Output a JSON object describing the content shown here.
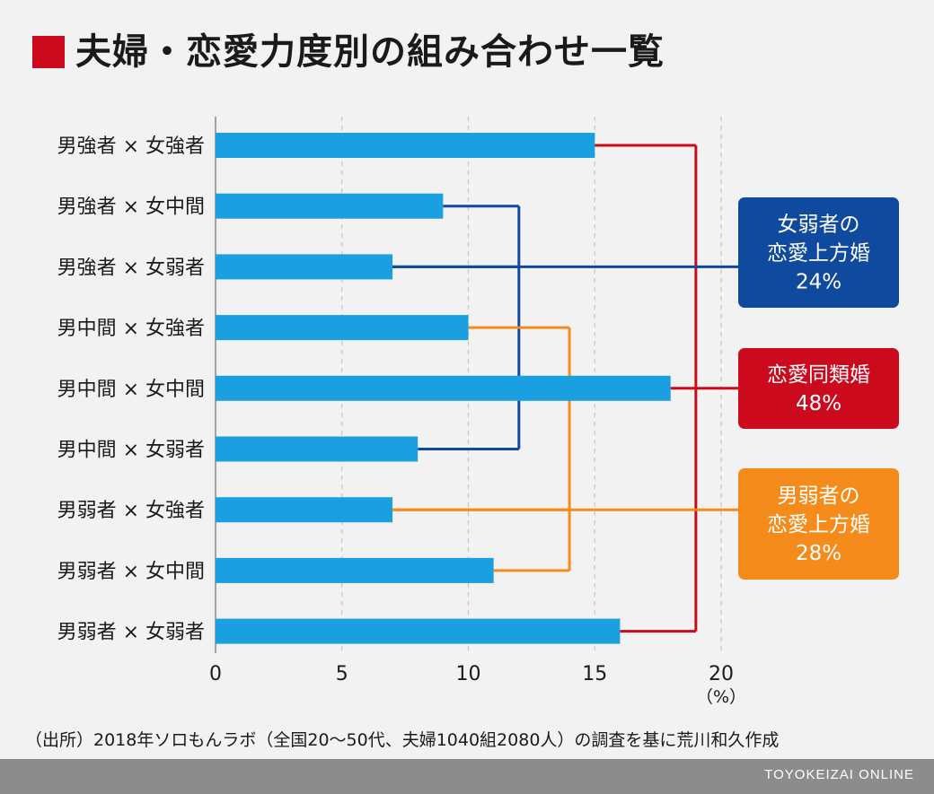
{
  "header": {
    "title": "夫婦・恋愛力度別の組み合わせ一覧"
  },
  "colors": {
    "title_marker": "#cc0a1e",
    "bar": "#1aa0e0",
    "grid": "#c8c8c8",
    "axis": "#888888",
    "red": "#cc0a1e",
    "blue": "#0f4a9e",
    "orange": "#f58b1a"
  },
  "chart_data": {
    "type": "bar",
    "orientation": "horizontal",
    "categories": [
      "男強者 × 女強者",
      "男強者 × 女中間",
      "男強者 × 女弱者",
      "男中間 × 女強者",
      "男中間 × 女中間",
      "男中間 × 女弱者",
      "男弱者 × 女強者",
      "男弱者 × 女中間",
      "男弱者 × 女弱者"
    ],
    "values": [
      15,
      9,
      7,
      10,
      18,
      8,
      7,
      11,
      16
    ],
    "xlim": [
      0,
      20
    ],
    "x_ticks": [
      0,
      5,
      10,
      15,
      20
    ],
    "x_tick_labels": [
      "0",
      "5",
      "10",
      "15",
      "20"
    ],
    "unit_label": "（%）",
    "grid": true,
    "groups": [
      {
        "id": "red",
        "label_lines": [
          "恋愛同類婚",
          "48%"
        ],
        "members": [
          0,
          4,
          8
        ],
        "bracket_x": 19
      },
      {
        "id": "blue",
        "label_lines": [
          "女弱者の",
          "恋愛上方婚",
          "24%"
        ],
        "members": [
          1,
          2,
          5
        ],
        "bracket_x": 12
      },
      {
        "id": "orange",
        "label_lines": [
          "男弱者の",
          "恋愛上方婚",
          "28%"
        ],
        "members": [
          3,
          6,
          7
        ],
        "bracket_x": 14
      }
    ]
  },
  "source_note": "（出所）2018年ソロもんラボ（全国20〜50代、夫婦1040組2080人）の調査を基に荒川和久作成",
  "footer": {
    "brand": "TOYOKEIZAI ONLINE"
  }
}
